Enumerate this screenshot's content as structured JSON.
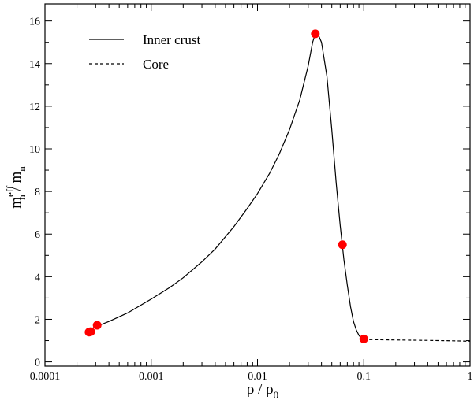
{
  "chart_data": {
    "type": "line",
    "title": "",
    "xlabel": {
      "main": "ρ / ρ",
      "sub": "0"
    },
    "ylabel": {
      "main": "m",
      "sup": "eff",
      "sub": "n",
      "rest": " / m",
      "sub2": "n"
    },
    "x_scale": "log",
    "xlim": [
      0.0001,
      1
    ],
    "ylim": [
      -0.2,
      16.8
    ],
    "x_ticks": [
      {
        "value": 0.0001,
        "label": "0.0001"
      },
      {
        "value": 0.001,
        "label": "0.001"
      },
      {
        "value": 0.01,
        "label": "0.01"
      },
      {
        "value": 0.1,
        "label": "0.1"
      },
      {
        "value": 1,
        "label": "1"
      }
    ],
    "y_ticks": [
      {
        "value": 0,
        "label": "0"
      },
      {
        "value": 2,
        "label": "2"
      },
      {
        "value": 4,
        "label": "4"
      },
      {
        "value": 6,
        "label": "6"
      },
      {
        "value": 8,
        "label": "8"
      },
      {
        "value": 10,
        "label": "10"
      },
      {
        "value": 12,
        "label": "12"
      },
      {
        "value": 14,
        "label": "14"
      },
      {
        "value": 16,
        "label": "16"
      }
    ],
    "grid": false,
    "legend_position": "top-left",
    "series": [
      {
        "name": "Inner crust",
        "style": "solid",
        "color": "#000000",
        "x": [
          0.00027,
          0.0003,
          0.0004,
          0.0006,
          0.001,
          0.0015,
          0.002,
          0.003,
          0.004,
          0.006,
          0.008,
          0.01,
          0.013,
          0.016,
          0.02,
          0.025,
          0.03,
          0.033,
          0.035,
          0.037,
          0.04,
          0.045,
          0.05,
          0.055,
          0.06,
          0.065,
          0.07,
          0.075,
          0.08,
          0.085,
          0.09,
          0.095,
          0.1
        ],
        "y": [
          1.55,
          1.65,
          1.9,
          2.3,
          2.95,
          3.5,
          3.95,
          4.7,
          5.3,
          6.35,
          7.2,
          7.9,
          8.85,
          9.75,
          10.9,
          12.3,
          13.9,
          15.0,
          15.4,
          15.4,
          15.0,
          13.4,
          10.9,
          8.4,
          6.4,
          4.8,
          3.6,
          2.6,
          1.9,
          1.5,
          1.25,
          1.1,
          1.05
        ]
      },
      {
        "name": "Core",
        "style": "dashed",
        "color": "#000000",
        "x": [
          0.1,
          0.2,
          0.4,
          0.7,
          1.0
        ],
        "y": [
          1.05,
          1.03,
          1.01,
          0.99,
          0.97
        ]
      }
    ],
    "markers": {
      "color": "#ff0000",
      "points": [
        {
          "x": 0.00026,
          "y": 1.4
        },
        {
          "x": 0.00027,
          "y": 1.42
        },
        {
          "x": 0.00031,
          "y": 1.72
        },
        {
          "x": 0.035,
          "y": 15.4
        },
        {
          "x": 0.063,
          "y": 5.5
        },
        {
          "x": 0.1,
          "y": 1.08
        }
      ]
    }
  }
}
